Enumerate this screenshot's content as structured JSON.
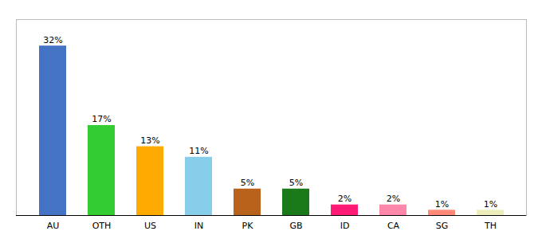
{
  "chart_data": {
    "type": "bar",
    "categories": [
      "AU",
      "OTH",
      "US",
      "IN",
      "PK",
      "GB",
      "ID",
      "CA",
      "SG",
      "TH"
    ],
    "values": [
      32,
      17,
      13,
      11,
      5,
      5,
      2,
      2,
      1,
      1
    ],
    "value_labels": [
      "32%",
      "17%",
      "13%",
      "11%",
      "5%",
      "5%",
      "2%",
      "2%",
      "1%",
      "1%"
    ],
    "colors": [
      "#4472c4",
      "#33cc33",
      "#ffaa00",
      "#87ceeb",
      "#b8621b",
      "#1a7a1a",
      "#ff1a75",
      "#ff88aa",
      "#ff8877",
      "#eeeebb"
    ],
    "ylim": [
      0,
      37
    ],
    "data_labels": true,
    "tick_labels": "x",
    "grid": false
  }
}
